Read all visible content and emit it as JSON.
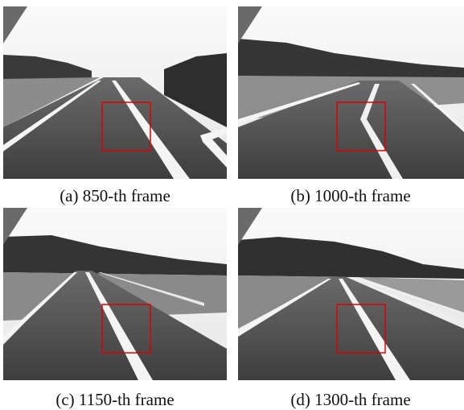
{
  "figure": {
    "panels": [
      {
        "caption": "(a) 850-th frame"
      },
      {
        "caption": "(b) 1000-th frame"
      },
      {
        "caption": "(c) 1150-th frame"
      },
      {
        "caption": "(d) 1300-th frame"
      }
    ]
  }
}
